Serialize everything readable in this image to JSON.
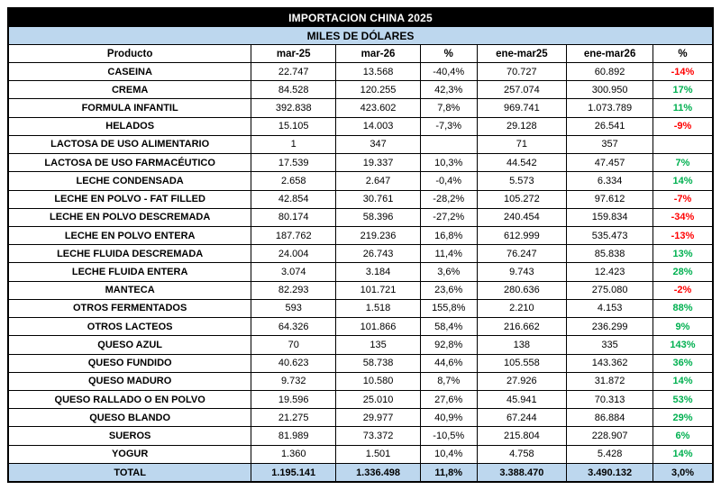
{
  "title": "IMPORTACION CHINA 2025",
  "subtitle": "MILES DE DÓLARES",
  "colors": {
    "title_bg": "#000000",
    "title_text": "#FFFFFF",
    "accent_bg": "#BDD7EE",
    "positive": "#00B050",
    "negative": "#FF0000",
    "border": "#000000"
  },
  "chart_data": {
    "type": "table",
    "columns": [
      "Producto",
      "mar-25",
      "mar-26",
      "%",
      "ene-mar25",
      "ene-mar26",
      "%"
    ],
    "rows": [
      {
        "product": "CASEINA",
        "mar25": "22.747",
        "mar26": "13.568",
        "pct_m": "-40,4%",
        "ene25": "70.727",
        "ene26": "60.892",
        "pct_y": "-14%",
        "trend": "neg"
      },
      {
        "product": "CREMA",
        "mar25": "84.528",
        "mar26": "120.255",
        "pct_m": "42,3%",
        "ene25": "257.074",
        "ene26": "300.950",
        "pct_y": "17%",
        "trend": "pos"
      },
      {
        "product": "FORMULA INFANTIL",
        "mar25": "392.838",
        "mar26": "423.602",
        "pct_m": "7,8%",
        "ene25": "969.741",
        "ene26": "1.073.789",
        "pct_y": "11%",
        "trend": "pos"
      },
      {
        "product": "HELADOS",
        "mar25": "15.105",
        "mar26": "14.003",
        "pct_m": "-7,3%",
        "ene25": "29.128",
        "ene26": "26.541",
        "pct_y": "-9%",
        "trend": "neg"
      },
      {
        "product": "LACTOSA DE USO ALIMENTARIO",
        "mar25": "1",
        "mar26": "347",
        "pct_m": "",
        "ene25": "71",
        "ene26": "357",
        "pct_y": "",
        "trend": "none"
      },
      {
        "product": "LACTOSA DE USO FARMACÉUTICO",
        "mar25": "17.539",
        "mar26": "19.337",
        "pct_m": "10,3%",
        "ene25": "44.542",
        "ene26": "47.457",
        "pct_y": "7%",
        "trend": "pos"
      },
      {
        "product": "LECHE CONDENSADA",
        "mar25": "2.658",
        "mar26": "2.647",
        "pct_m": "-0,4%",
        "ene25": "5.573",
        "ene26": "6.334",
        "pct_y": "14%",
        "trend": "pos"
      },
      {
        "product": "LECHE EN POLVO - FAT FILLED",
        "mar25": "42.854",
        "mar26": "30.761",
        "pct_m": "-28,2%",
        "ene25": "105.272",
        "ene26": "97.612",
        "pct_y": "-7%",
        "trend": "neg"
      },
      {
        "product": "LECHE EN POLVO DESCREMADA",
        "mar25": "80.174",
        "mar26": "58.396",
        "pct_m": "-27,2%",
        "ene25": "240.454",
        "ene26": "159.834",
        "pct_y": "-34%",
        "trend": "neg"
      },
      {
        "product": "LECHE EN POLVO ENTERA",
        "mar25": "187.762",
        "mar26": "219.236",
        "pct_m": "16,8%",
        "ene25": "612.999",
        "ene26": "535.473",
        "pct_y": "-13%",
        "trend": "neg"
      },
      {
        "product": "LECHE FLUIDA DESCREMADA",
        "mar25": "24.004",
        "mar26": "26.743",
        "pct_m": "11,4%",
        "ene25": "76.247",
        "ene26": "85.838",
        "pct_y": "13%",
        "trend": "pos"
      },
      {
        "product": "LECHE FLUIDA ENTERA",
        "mar25": "3.074",
        "mar26": "3.184",
        "pct_m": "3,6%",
        "ene25": "9.743",
        "ene26": "12.423",
        "pct_y": "28%",
        "trend": "pos"
      },
      {
        "product": "MANTECA",
        "mar25": "82.293",
        "mar26": "101.721",
        "pct_m": "23,6%",
        "ene25": "280.636",
        "ene26": "275.080",
        "pct_y": "-2%",
        "trend": "neg"
      },
      {
        "product": "OTROS FERMENTADOS",
        "mar25": "593",
        "mar26": "1.518",
        "pct_m": "155,8%",
        "ene25": "2.210",
        "ene26": "4.153",
        "pct_y": "88%",
        "trend": "pos"
      },
      {
        "product": "OTROS LACTEOS",
        "mar25": "64.326",
        "mar26": "101.866",
        "pct_m": "58,4%",
        "ene25": "216.662",
        "ene26": "236.299",
        "pct_y": "9%",
        "trend": "pos"
      },
      {
        "product": "QUESO AZUL",
        "mar25": "70",
        "mar26": "135",
        "pct_m": "92,8%",
        "ene25": "138",
        "ene26": "335",
        "pct_y": "143%",
        "trend": "pos"
      },
      {
        "product": "QUESO FUNDIDO",
        "mar25": "40.623",
        "mar26": "58.738",
        "pct_m": "44,6%",
        "ene25": "105.558",
        "ene26": "143.362",
        "pct_y": "36%",
        "trend": "pos"
      },
      {
        "product": "QUESO MADURO",
        "mar25": "9.732",
        "mar26": "10.580",
        "pct_m": "8,7%",
        "ene25": "27.926",
        "ene26": "31.872",
        "pct_y": "14%",
        "trend": "pos"
      },
      {
        "product": "QUESO RALLADO O EN POLVO",
        "mar25": "19.596",
        "mar26": "25.010",
        "pct_m": "27,6%",
        "ene25": "45.941",
        "ene26": "70.313",
        "pct_y": "53%",
        "trend": "pos"
      },
      {
        "product": "QUESO BLANDO",
        "mar25": "21.275",
        "mar26": "29.977",
        "pct_m": "40,9%",
        "ene25": "67.244",
        "ene26": "86.884",
        "pct_y": "29%",
        "trend": "pos"
      },
      {
        "product": "SUEROS",
        "mar25": "81.989",
        "mar26": "73.372",
        "pct_m": "-10,5%",
        "ene25": "215.804",
        "ene26": "228.907",
        "pct_y": "6%",
        "trend": "pos"
      },
      {
        "product": "YOGUR",
        "mar25": "1.360",
        "mar26": "1.501",
        "pct_m": "10,4%",
        "ene25": "4.758",
        "ene26": "5.428",
        "pct_y": "14%",
        "trend": "pos"
      }
    ],
    "total": {
      "product": "TOTAL",
      "mar25": "1.195.141",
      "mar26": "1.336.498",
      "pct_m": "11,8%",
      "ene25": "3.388.470",
      "ene26": "3.490.132",
      "pct_y": "3,0%",
      "trend": "none"
    }
  }
}
